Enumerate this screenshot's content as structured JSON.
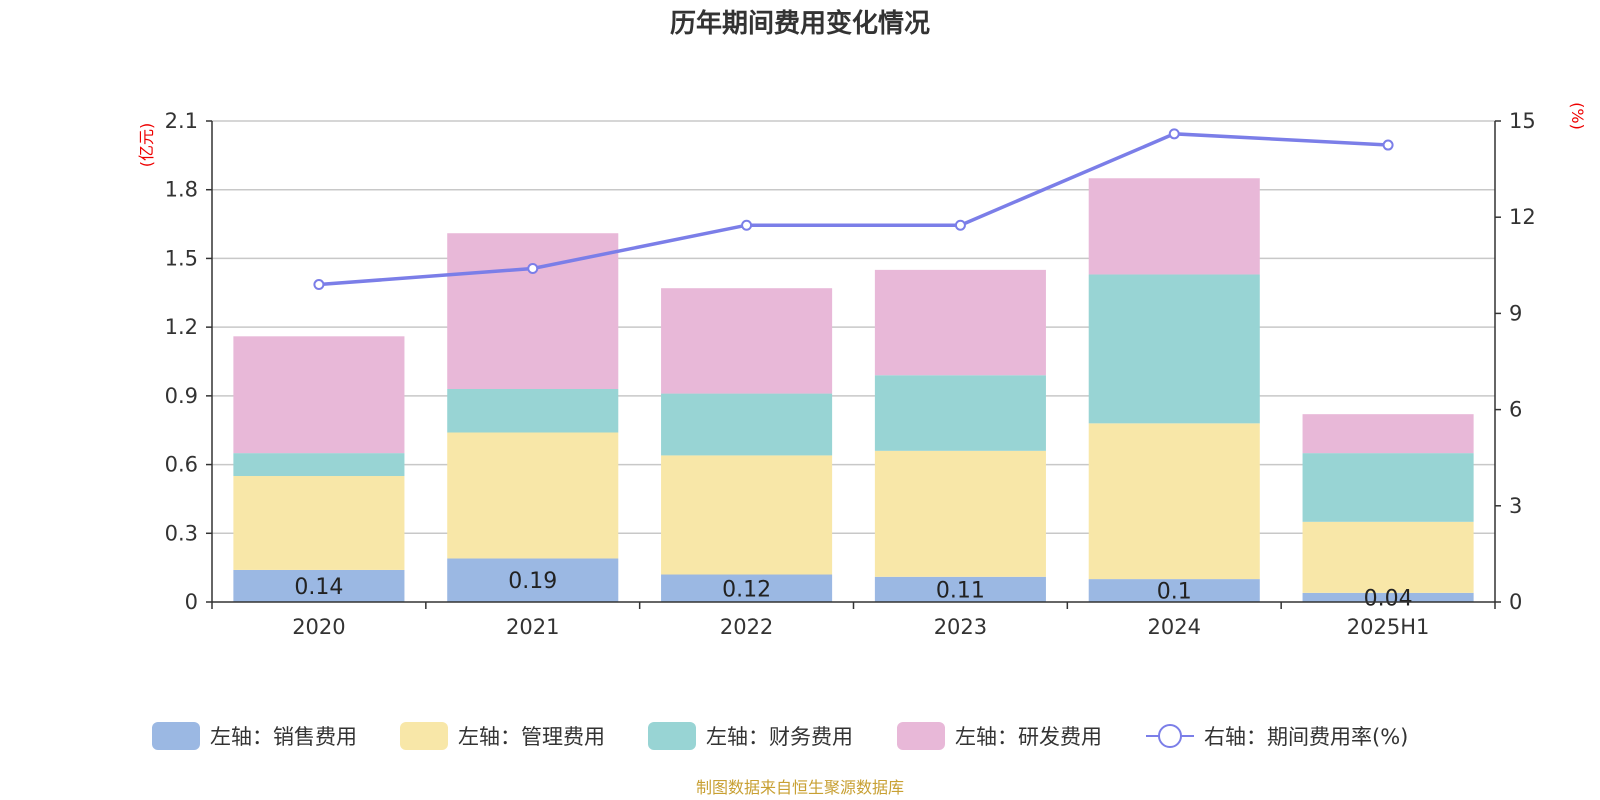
{
  "chart_data": {
    "type": "bar",
    "title": "历年期间费用变化情况",
    "categories": [
      "2020",
      "2021",
      "2022",
      "2023",
      "2024",
      "2025H1"
    ],
    "left_axis": {
      "unit": "(亿元)",
      "ylim": [
        0,
        2.1
      ],
      "ticks": [
        "0",
        "0.3",
        "0.6",
        "0.9",
        "1.2",
        "1.5",
        "1.8",
        "2.1"
      ]
    },
    "right_axis": {
      "unit": "(%)",
      "ylim": [
        0,
        15
      ],
      "ticks": [
        "0",
        "3",
        "6",
        "9",
        "12",
        "15"
      ]
    },
    "stacked": true,
    "series": [
      {
        "name": "左轴：销售费用",
        "color": "#9bb8e3",
        "values": [
          0.14,
          0.19,
          0.12,
          0.11,
          0.1,
          0.04
        ],
        "labels": [
          "0.14",
          "0.19",
          "0.12",
          "0.11",
          "0.1",
          "0.04"
        ]
      },
      {
        "name": "左轴：管理费用",
        "color": "#f8e7a8",
        "values": [
          0.41,
          0.55,
          0.52,
          0.55,
          0.68,
          0.31
        ]
      },
      {
        "name": "左轴：财务费用",
        "color": "#98d4d4",
        "values": [
          0.1,
          0.19,
          0.27,
          0.33,
          0.65,
          0.3
        ]
      },
      {
        "name": "左轴：研发费用",
        "color": "#e8b8d8",
        "values": [
          0.51,
          0.68,
          0.46,
          0.46,
          0.42,
          0.17
        ]
      }
    ],
    "line_series": {
      "name": "右轴：期间费用率(%)",
      "color": "#7b7ee8",
      "values": [
        9.9,
        10.4,
        11.75,
        11.75,
        14.6,
        14.25
      ]
    },
    "grid": true,
    "legend": "bottom"
  },
  "source_text": "制图数据来自恒生聚源数据库"
}
